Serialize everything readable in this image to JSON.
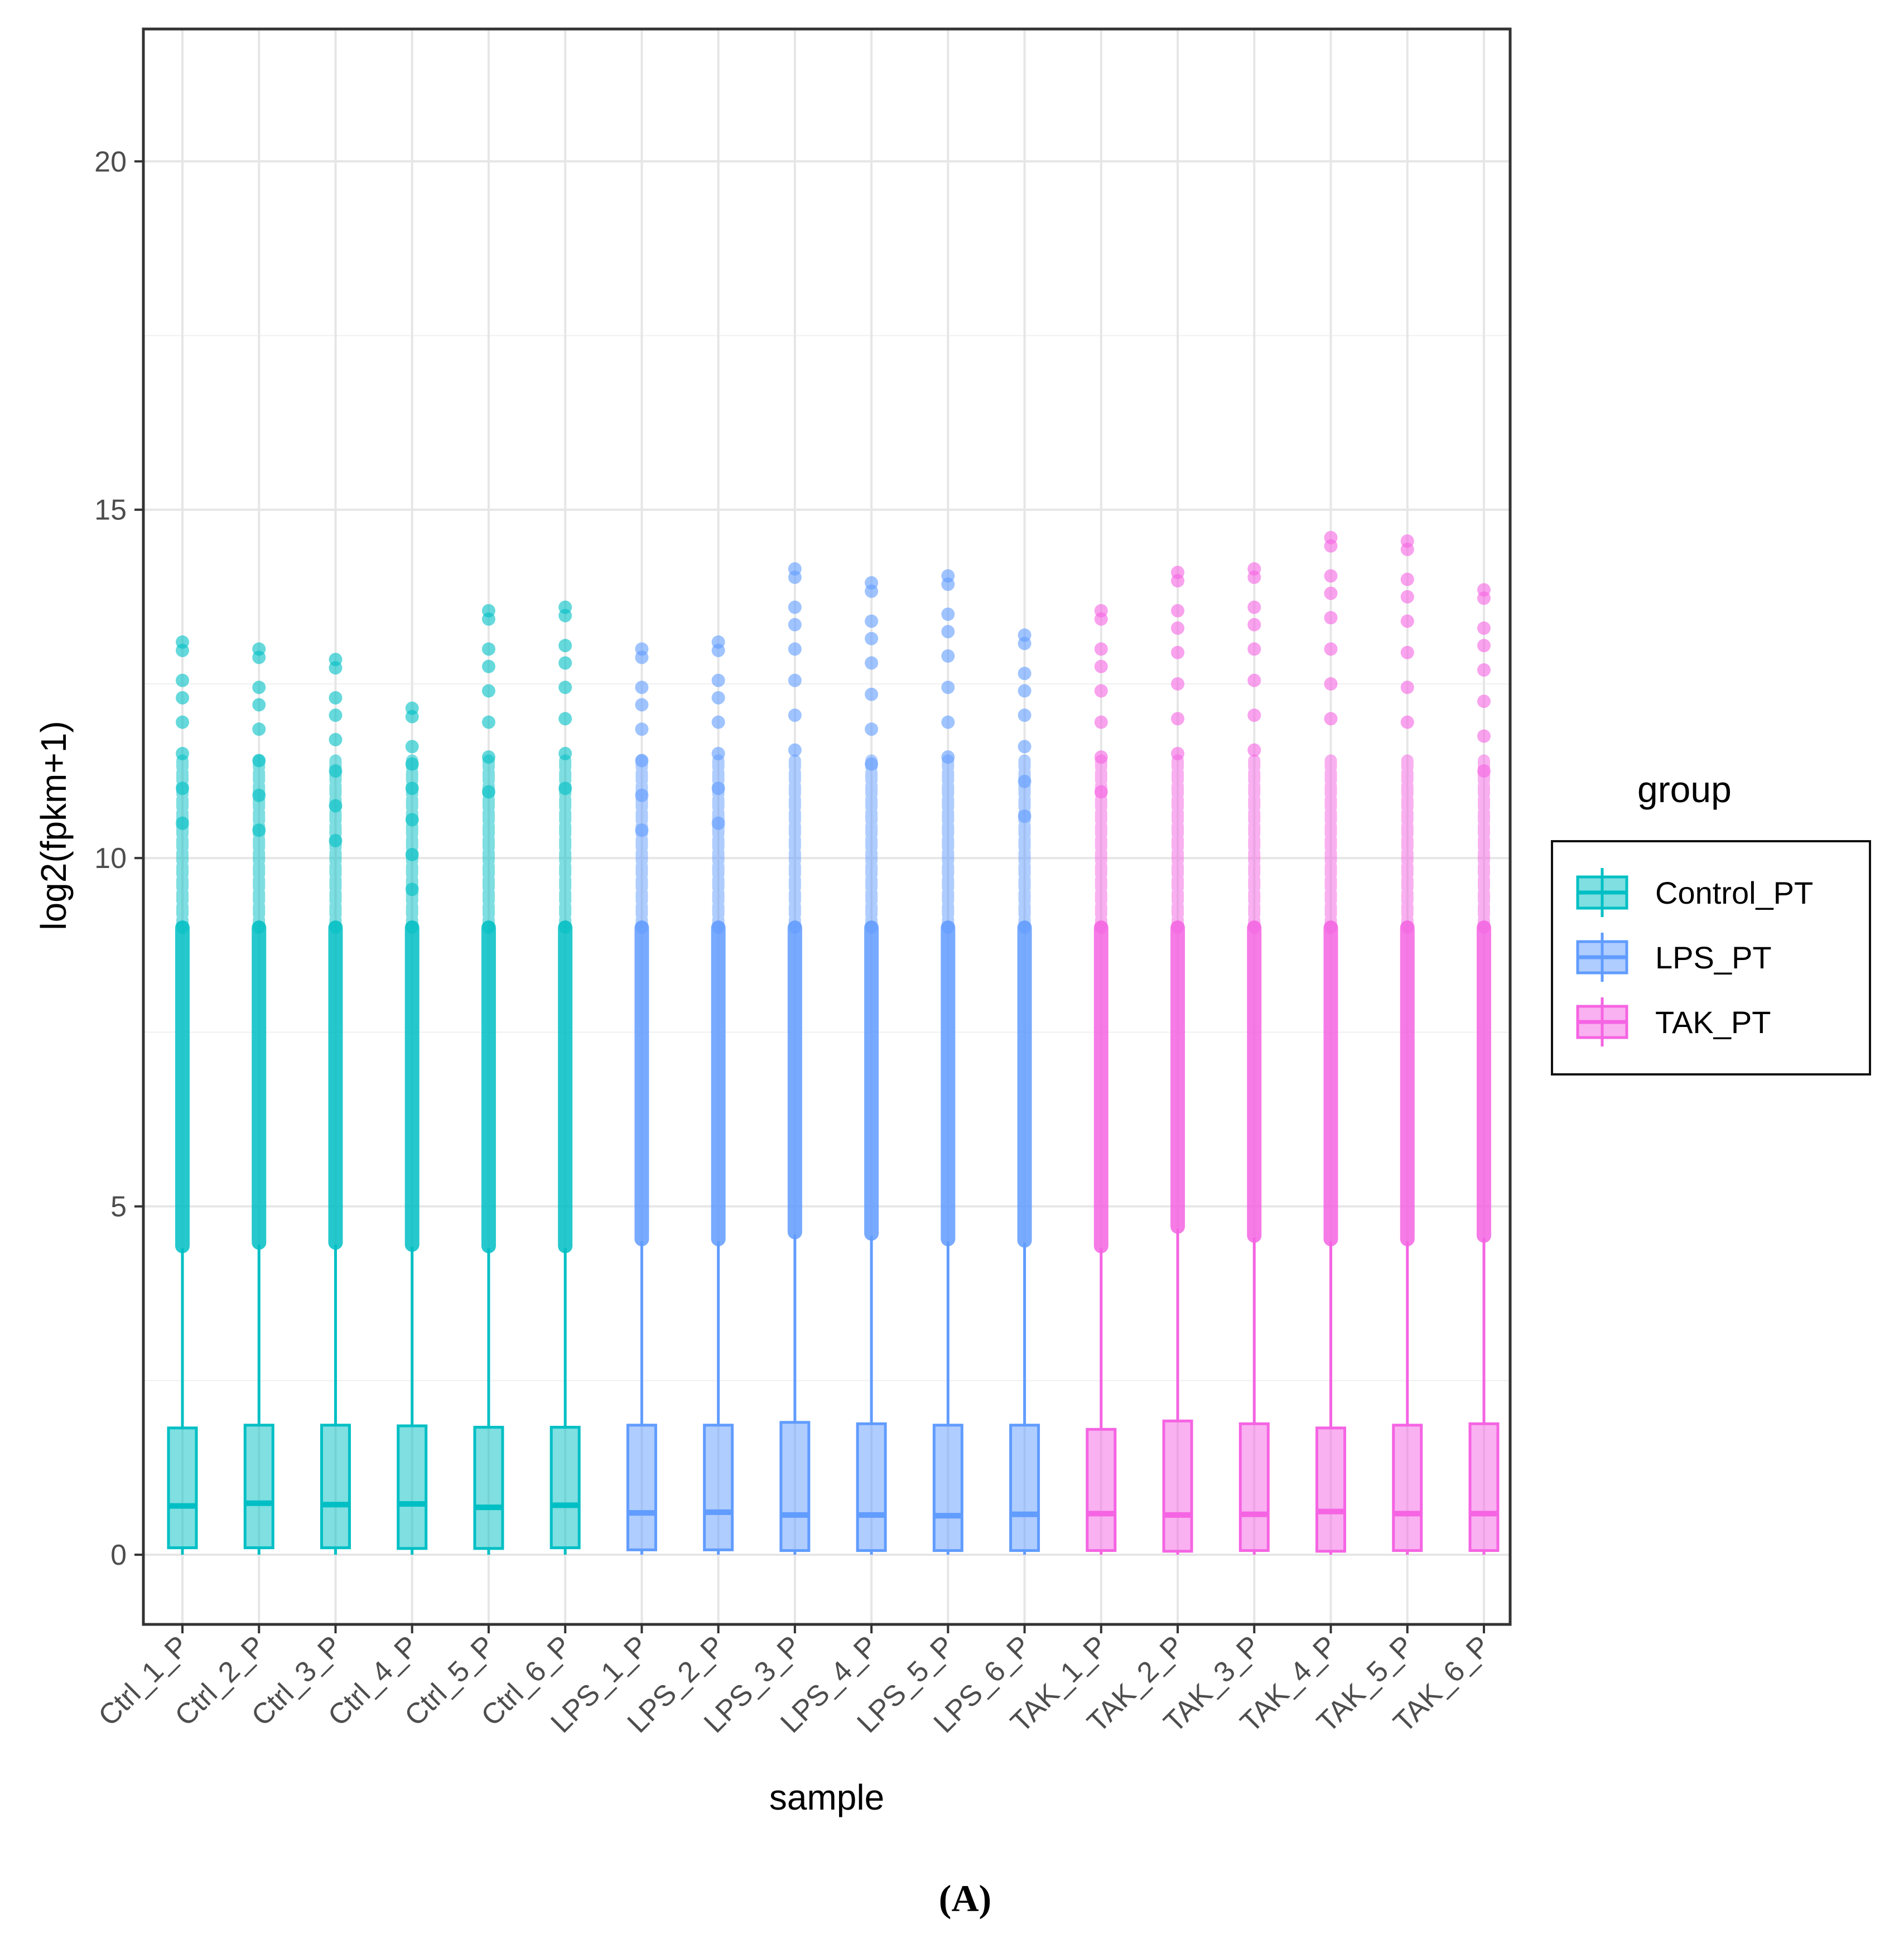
{
  "chart_data": {
    "type": "boxplot",
    "title": "",
    "xlabel": "sample",
    "ylabel": "log2(fpkm+1)",
    "ylim": [
      -1,
      21.9
    ],
    "yticks": [
      0,
      5,
      10,
      15,
      20
    ],
    "legend": {
      "title": "group",
      "position": "right",
      "entries": [
        "Control_PT",
        "LPS_PT",
        "TAK_PT"
      ]
    },
    "group_colors": {
      "Control_PT": "#00BFC4",
      "LPS_PT": "#619CFF",
      "TAK_PT": "#F564E3"
    },
    "samples": [
      {
        "name": "Ctrl_1_P",
        "group": "Control_PT",
        "q1": 0.1,
        "median": 0.7,
        "q3": 1.82,
        "whisker_low": 0.0,
        "whisker_high": 4.4,
        "outliers_top": 13.1
      },
      {
        "name": "Ctrl_2_P",
        "group": "Control_PT",
        "q1": 0.1,
        "median": 0.74,
        "q3": 1.86,
        "whisker_low": 0.0,
        "whisker_high": 4.45,
        "outliers_top": 13.0
      },
      {
        "name": "Ctrl_3_P",
        "group": "Control_PT",
        "q1": 0.1,
        "median": 0.72,
        "q3": 1.86,
        "whisker_low": 0.0,
        "whisker_high": 4.45,
        "outliers_top": 12.85
      },
      {
        "name": "Ctrl_4_P",
        "group": "Control_PT",
        "q1": 0.09,
        "median": 0.73,
        "q3": 1.85,
        "whisker_low": 0.0,
        "whisker_high": 4.42,
        "outliers_top": 12.15
      },
      {
        "name": "Ctrl_5_P",
        "group": "Control_PT",
        "q1": 0.09,
        "median": 0.68,
        "q3": 1.83,
        "whisker_low": 0.0,
        "whisker_high": 4.4,
        "outliers_top": 13.55
      },
      {
        "name": "Ctrl_6_P",
        "group": "Control_PT",
        "q1": 0.1,
        "median": 0.71,
        "q3": 1.83,
        "whisker_low": 0.0,
        "whisker_high": 4.4,
        "outliers_top": 13.6
      },
      {
        "name": "LPS_1_P",
        "group": "LPS_PT",
        "q1": 0.07,
        "median": 0.6,
        "q3": 1.86,
        "whisker_low": 0.0,
        "whisker_high": 4.5,
        "outliers_top": 13.0
      },
      {
        "name": "LPS_2_P",
        "group": "LPS_PT",
        "q1": 0.07,
        "median": 0.61,
        "q3": 1.86,
        "whisker_low": 0.0,
        "whisker_high": 4.5,
        "outliers_top": 13.1
      },
      {
        "name": "LPS_3_P",
        "group": "LPS_PT",
        "q1": 0.06,
        "median": 0.57,
        "q3": 1.9,
        "whisker_low": 0.0,
        "whisker_high": 4.6,
        "outliers_top": 14.15
      },
      {
        "name": "LPS_4_P",
        "group": "LPS_PT",
        "q1": 0.06,
        "median": 0.57,
        "q3": 1.88,
        "whisker_low": 0.0,
        "whisker_high": 4.58,
        "outliers_top": 13.95
      },
      {
        "name": "LPS_5_P",
        "group": "LPS_PT",
        "q1": 0.06,
        "median": 0.56,
        "q3": 1.86,
        "whisker_low": 0.0,
        "whisker_high": 4.5,
        "outliers_top": 14.05
      },
      {
        "name": "LPS_6_P",
        "group": "LPS_PT",
        "q1": 0.06,
        "median": 0.58,
        "q3": 1.86,
        "whisker_low": 0.0,
        "whisker_high": 4.48,
        "outliers_top": 13.2
      },
      {
        "name": "TAK_1_P",
        "group": "TAK_PT",
        "q1": 0.06,
        "median": 0.59,
        "q3": 1.8,
        "whisker_low": 0.0,
        "whisker_high": 4.4,
        "outliers_top": 13.55
      },
      {
        "name": "TAK_2_P",
        "group": "TAK_PT",
        "q1": 0.05,
        "median": 0.57,
        "q3": 1.92,
        "whisker_low": 0.0,
        "whisker_high": 4.68,
        "outliers_top": 14.1
      },
      {
        "name": "TAK_3_P",
        "group": "TAK_PT",
        "q1": 0.06,
        "median": 0.58,
        "q3": 1.88,
        "whisker_low": 0.0,
        "whisker_high": 4.55,
        "outliers_top": 14.15
      },
      {
        "name": "TAK_4_P",
        "group": "TAK_PT",
        "q1": 0.05,
        "median": 0.62,
        "q3": 1.82,
        "whisker_low": 0.0,
        "whisker_high": 4.5,
        "outliers_top": 14.6
      },
      {
        "name": "TAK_5_P",
        "group": "TAK_PT",
        "q1": 0.06,
        "median": 0.59,
        "q3": 1.86,
        "whisker_low": 0.0,
        "whisker_high": 4.5,
        "outliers_top": 14.55
      },
      {
        "name": "TAK_6_P",
        "group": "TAK_PT",
        "q1": 0.06,
        "median": 0.59,
        "q3": 1.88,
        "whisker_low": 0.0,
        "whisker_high": 4.55,
        "outliers_top": 13.85
      }
    ]
  },
  "figure_label": "(A)"
}
